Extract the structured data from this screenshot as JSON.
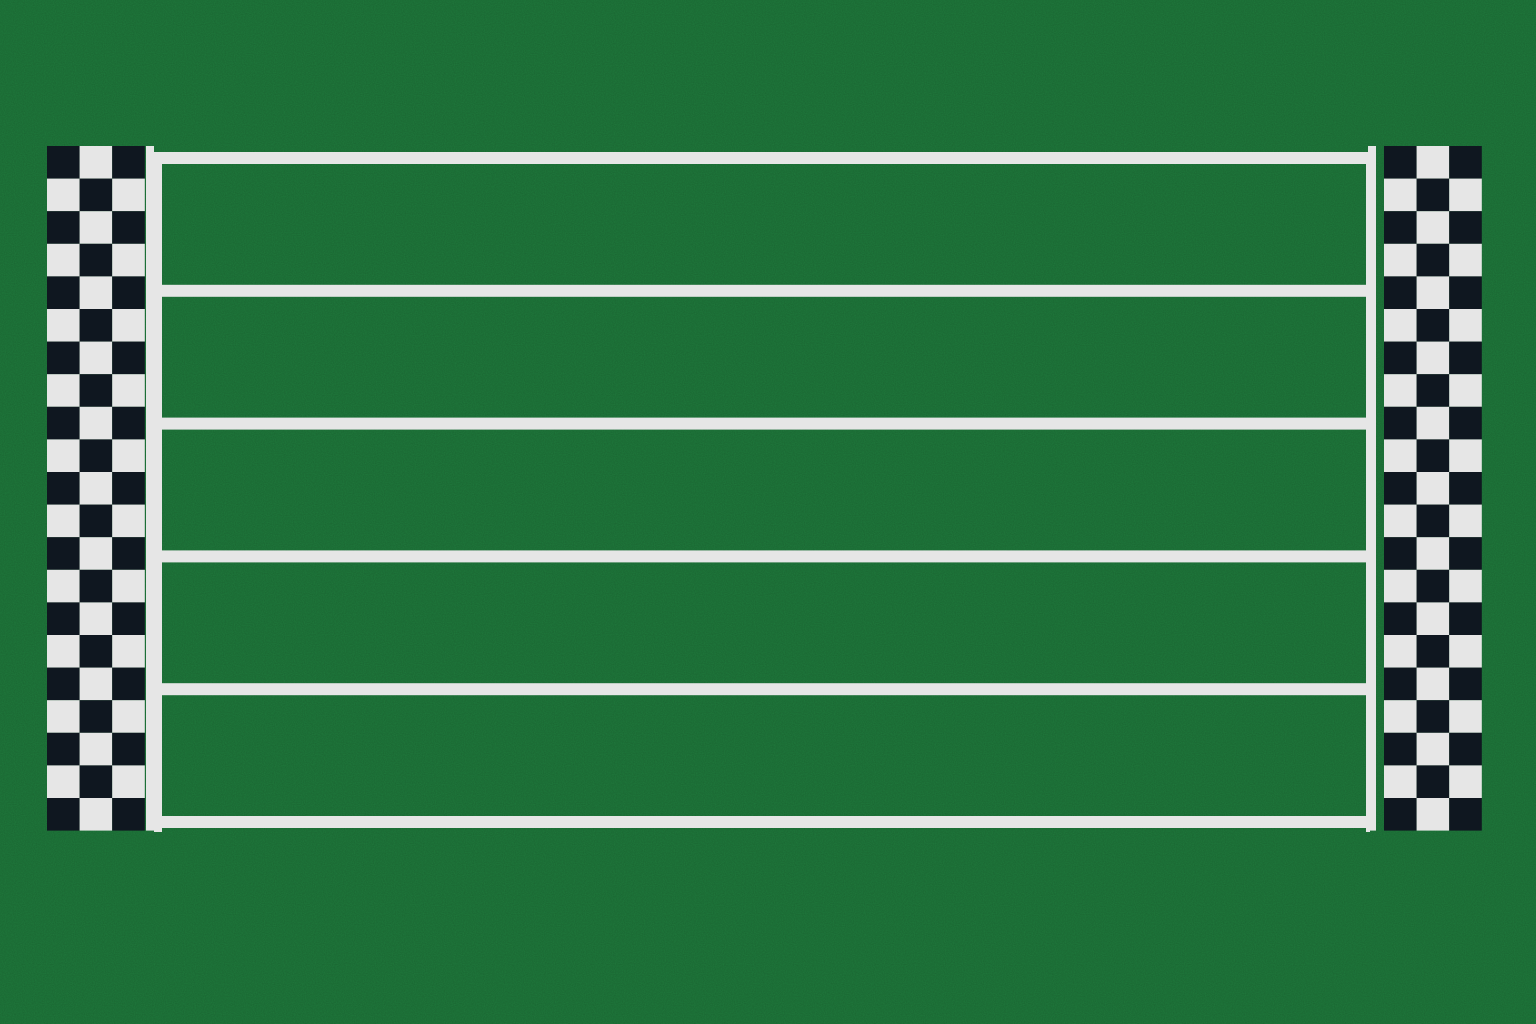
{
  "field": {
    "turf_color": "#1f7a3c",
    "turf_speckle_dark": "#1a6b33",
    "turf_speckle_light": "#26884a",
    "line_color": "#e6e6e6",
    "check_dark": "#0f1720",
    "check_light": "#e6e6e6"
  },
  "track": {
    "lane_count": 5,
    "lanes": [
      {
        "name": "lane-1"
      },
      {
        "name": "lane-2"
      },
      {
        "name": "lane-3"
      },
      {
        "name": "lane-4"
      },
      {
        "name": "lane-5"
      }
    ]
  },
  "start_flag": {
    "icon": "checkered-flag",
    "columns": 3,
    "rows": 21
  },
  "finish_flag": {
    "icon": "checkered-flag",
    "columns": 3,
    "rows": 21
  }
}
